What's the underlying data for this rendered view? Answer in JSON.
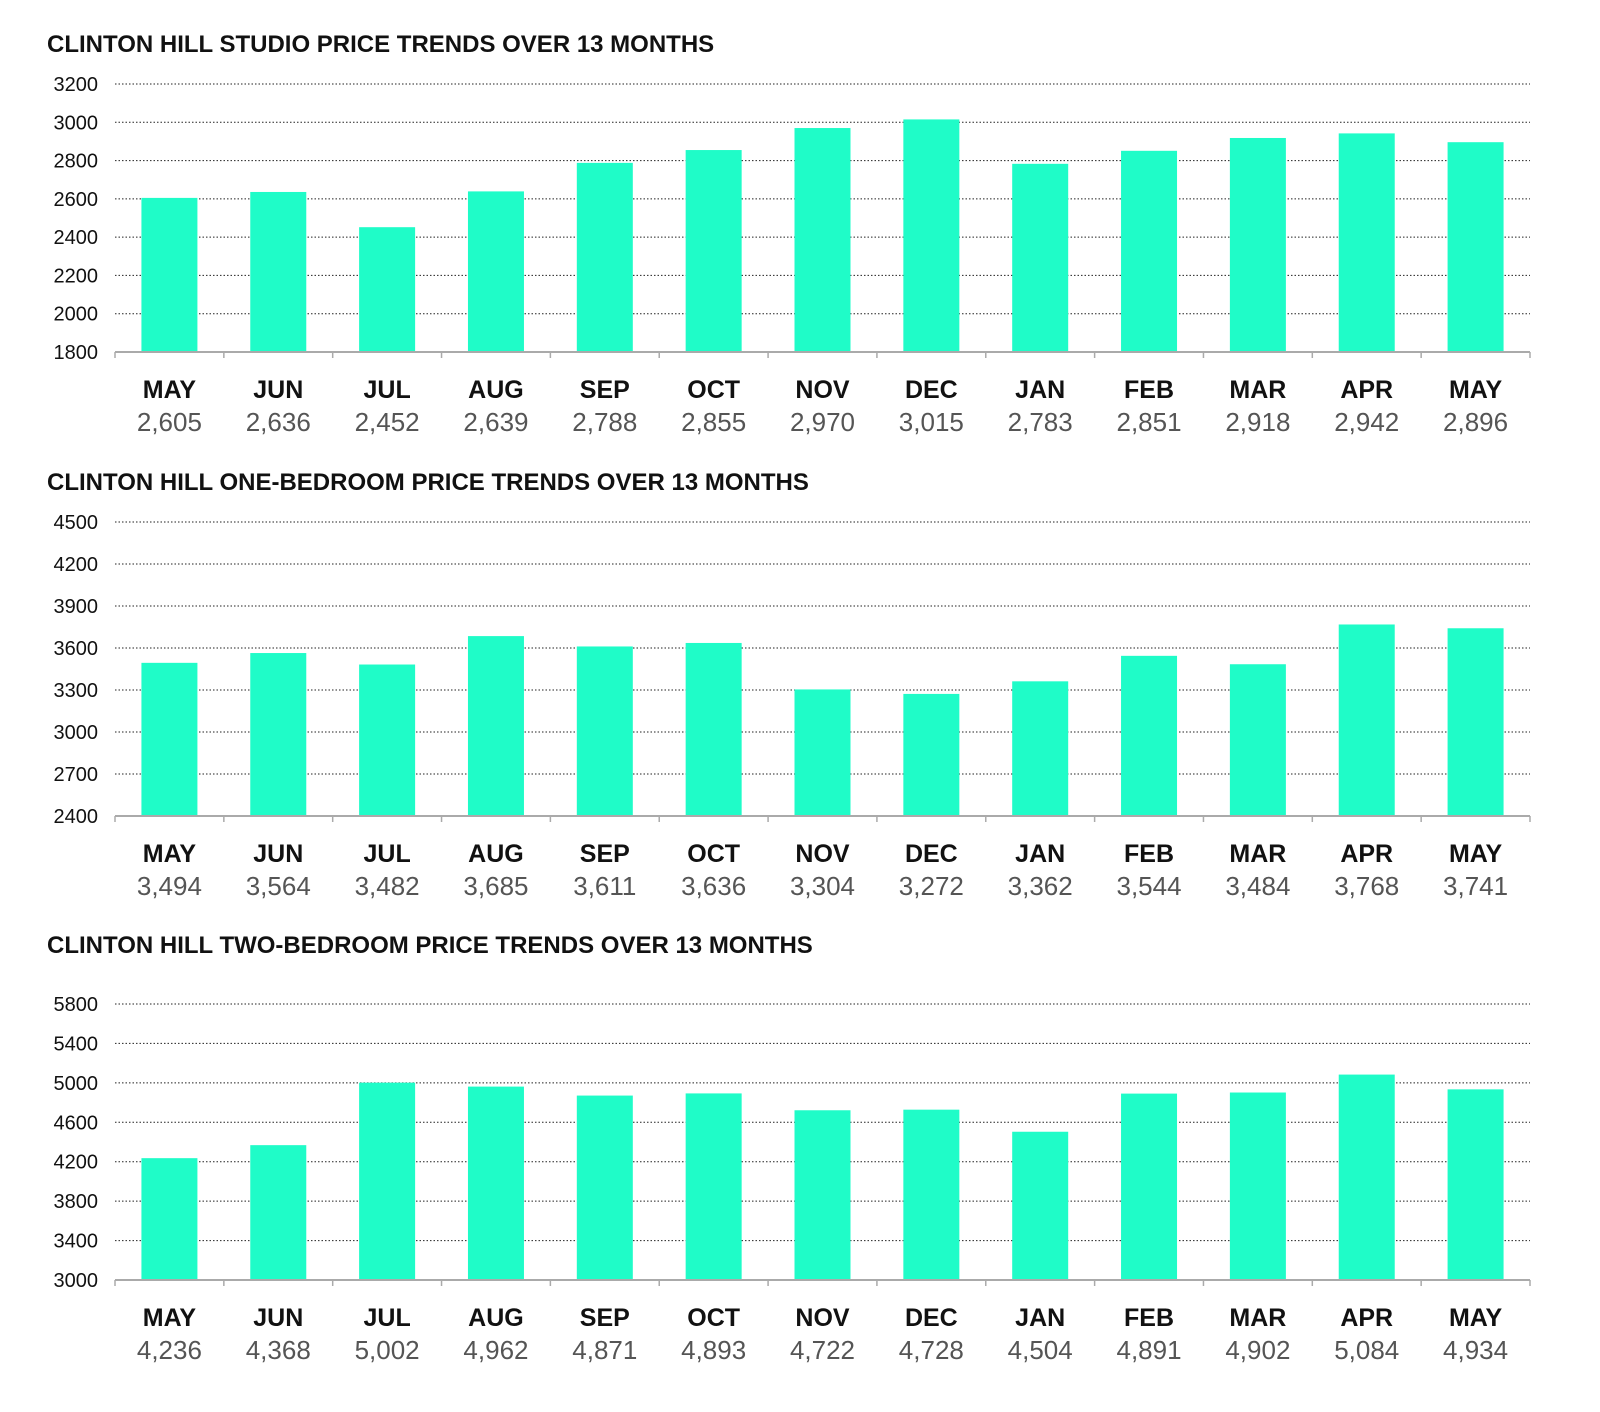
{
  "colors": {
    "bar": "#1ffcc8",
    "text": "#111111",
    "value_text": "#555555"
  },
  "chart_data": [
    {
      "type": "bar",
      "title": "CLINTON HILL STUDIO PRICE TRENDS OVER 13 MONTHS",
      "categories": [
        "MAY",
        "JUN",
        "JUL",
        "AUG",
        "SEP",
        "OCT",
        "NOV",
        "DEC",
        "JAN",
        "FEB",
        "MAR",
        "APR",
        "MAY"
      ],
      "values": [
        2605,
        2636,
        2452,
        2639,
        2788,
        2855,
        2970,
        3015,
        2783,
        2851,
        2918,
        2942,
        2896
      ],
      "value_labels": [
        "2,605",
        "2,636",
        "2,452",
        "2,639",
        "2,788",
        "2,855",
        "2,970",
        "3,015",
        "2,783",
        "2,851",
        "2,918",
        "2,942",
        "2,896"
      ],
      "ylim": [
        1800,
        3200
      ],
      "yticks": [
        1800,
        2000,
        2200,
        2400,
        2600,
        2800,
        3000,
        3200
      ],
      "grid": true
    },
    {
      "type": "bar",
      "title": "CLINTON HILL ONE-BEDROOM PRICE TRENDS OVER 13 MONTHS",
      "categories": [
        "MAY",
        "JUN",
        "JUL",
        "AUG",
        "SEP",
        "OCT",
        "NOV",
        "DEC",
        "JAN",
        "FEB",
        "MAR",
        "APR",
        "MAY"
      ],
      "values": [
        3494,
        3564,
        3482,
        3685,
        3611,
        3636,
        3304,
        3272,
        3362,
        3544,
        3484,
        3768,
        3741
      ],
      "value_labels": [
        "3,494",
        "3,564",
        "3,482",
        "3,685",
        "3,611",
        "3,636",
        "3,304",
        "3,272",
        "3,362",
        "3,544",
        "3,484",
        "3,768",
        "3,741"
      ],
      "ylim": [
        2400,
        4500
      ],
      "yticks": [
        2400,
        2700,
        3000,
        3300,
        3600,
        3900,
        4200,
        4500
      ],
      "grid": true
    },
    {
      "type": "bar",
      "title": "CLINTON HILL TWO-BEDROOM PRICE TRENDS OVER 13 MONTHS",
      "categories": [
        "MAY",
        "JUN",
        "JUL",
        "AUG",
        "SEP",
        "OCT",
        "NOV",
        "DEC",
        "JAN",
        "FEB",
        "MAR",
        "APR",
        "MAY"
      ],
      "values": [
        4236,
        4368,
        5002,
        4962,
        4871,
        4893,
        4722,
        4728,
        4504,
        4891,
        4902,
        5084,
        4934
      ],
      "value_labels": [
        "4,236",
        "4,368",
        "5,002",
        "4,962",
        "4,871",
        "4,893",
        "4,722",
        "4,728",
        "4,504",
        "4,891",
        "4,902",
        "5,084",
        "4,934"
      ],
      "ylim": [
        3000,
        6000
      ],
      "yticks": [
        3000,
        3400,
        3800,
        4200,
        4600,
        5000,
        5400,
        5800
      ],
      "grid": true
    }
  ]
}
